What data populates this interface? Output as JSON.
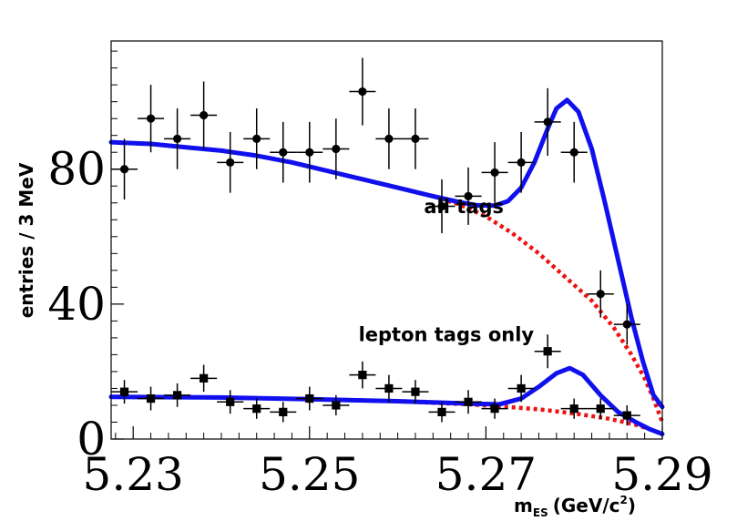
{
  "chart_data": {
    "type": "scatter",
    "title": "",
    "xlabel": {
      "main": "m",
      "sub": "ES",
      "unit": "(GeV/c",
      "sup": "2",
      "close": ")"
    },
    "ylabel": "entries / 3 MeV",
    "xlim": [
      5.2275,
      5.29
    ],
    "ylim": [
      0,
      118
    ],
    "x_ticks": [
      5.23,
      5.25,
      5.27,
      5.29
    ],
    "x_tick_labels": [
      "5.23",
      "5.25",
      "5.27",
      "5.29"
    ],
    "y_ticks": [
      0,
      40,
      80
    ],
    "y_tick_labels": [
      "0",
      "40",
      "80"
    ],
    "x_bin_halfwidth": 0.0015,
    "annotations": [
      {
        "text": "all tags",
        "x": 5.2675,
        "y": 67
      },
      {
        "text": "lepton tags only",
        "x": 5.2655,
        "y": 29
      }
    ],
    "series": [
      {
        "name": "all tags",
        "marker": "circle",
        "color": "#000000",
        "points": [
          {
            "x": 5.229,
            "y": 80,
            "err": 9
          },
          {
            "x": 5.232,
            "y": 95,
            "err": 10
          },
          {
            "x": 5.235,
            "y": 89,
            "err": 9
          },
          {
            "x": 5.238,
            "y": 96,
            "err": 10
          },
          {
            "x": 5.241,
            "y": 82,
            "err": 9
          },
          {
            "x": 5.244,
            "y": 89,
            "err": 9
          },
          {
            "x": 5.247,
            "y": 85,
            "err": 9
          },
          {
            "x": 5.25,
            "y": 85,
            "err": 9
          },
          {
            "x": 5.253,
            "y": 86,
            "err": 9
          },
          {
            "x": 5.256,
            "y": 103,
            "err": 10
          },
          {
            "x": 5.259,
            "y": 89,
            "err": 9
          },
          {
            "x": 5.262,
            "y": 89,
            "err": 9
          },
          {
            "x": 5.265,
            "y": 69,
            "err": 8
          },
          {
            "x": 5.268,
            "y": 72,
            "err": 8.5
          },
          {
            "x": 5.271,
            "y": 79,
            "err": 9
          },
          {
            "x": 5.274,
            "y": 82,
            "err": 9
          },
          {
            "x": 5.277,
            "y": 94,
            "err": 10
          },
          {
            "x": 5.28,
            "y": 85,
            "err": 9
          },
          {
            "x": 5.283,
            "y": 43,
            "err": 7
          },
          {
            "x": 5.286,
            "y": 34,
            "err": 6
          }
        ]
      },
      {
        "name": "lepton tags only",
        "marker": "square",
        "color": "#000000",
        "points": [
          {
            "x": 5.229,
            "y": 14,
            "err": 3.5
          },
          {
            "x": 5.232,
            "y": 12,
            "err": 3.5
          },
          {
            "x": 5.235,
            "y": 13,
            "err": 3.5
          },
          {
            "x": 5.238,
            "y": 18,
            "err": 4
          },
          {
            "x": 5.241,
            "y": 11,
            "err": 3.5
          },
          {
            "x": 5.244,
            "y": 9,
            "err": 3
          },
          {
            "x": 5.247,
            "y": 8,
            "err": 3
          },
          {
            "x": 5.25,
            "y": 12,
            "err": 3.5
          },
          {
            "x": 5.253,
            "y": 10,
            "err": 3
          },
          {
            "x": 5.256,
            "y": 19,
            "err": 4
          },
          {
            "x": 5.259,
            "y": 15,
            "err": 4
          },
          {
            "x": 5.262,
            "y": 14,
            "err": 3.5
          },
          {
            "x": 5.265,
            "y": 8,
            "err": 3
          },
          {
            "x": 5.268,
            "y": 11,
            "err": 3.5
          },
          {
            "x": 5.271,
            "y": 9,
            "err": 3
          },
          {
            "x": 5.274,
            "y": 15,
            "err": 4
          },
          {
            "x": 5.277,
            "y": 26,
            "err": 5
          },
          {
            "x": 5.28,
            "y": 9,
            "err": 3
          },
          {
            "x": 5.283,
            "y": 9,
            "err": 3
          },
          {
            "x": 5.286,
            "y": 7,
            "err": 3
          }
        ]
      }
    ],
    "curves": [
      {
        "name": "all tags total fit",
        "color": "#1010ee",
        "style": "solid",
        "points": [
          [
            5.2275,
            88
          ],
          [
            5.232,
            87.5
          ],
          [
            5.236,
            86.5
          ],
          [
            5.24,
            85.5
          ],
          [
            5.244,
            84
          ],
          [
            5.248,
            82
          ],
          [
            5.252,
            79.5
          ],
          [
            5.256,
            77
          ],
          [
            5.26,
            74.5
          ],
          [
            5.264,
            72
          ],
          [
            5.267,
            70.2
          ],
          [
            5.269,
            69.3
          ],
          [
            5.271,
            69.2
          ],
          [
            5.2725,
            70.5
          ],
          [
            5.274,
            74.5
          ],
          [
            5.2755,
            82
          ],
          [
            5.277,
            92
          ],
          [
            5.278,
            98
          ],
          [
            5.2792,
            100.5
          ],
          [
            5.2805,
            97
          ],
          [
            5.282,
            86
          ],
          [
            5.2835,
            70
          ],
          [
            5.285,
            53
          ],
          [
            5.2865,
            36
          ],
          [
            5.2878,
            23
          ],
          [
            5.289,
            13
          ],
          [
            5.29,
            9.5
          ]
        ]
      },
      {
        "name": "all tags background",
        "color": "#ee1111",
        "style": "dotted",
        "points": [
          [
            5.2275,
            88
          ],
          [
            5.232,
            87.5
          ],
          [
            5.236,
            86.5
          ],
          [
            5.24,
            85.5
          ],
          [
            5.244,
            84
          ],
          [
            5.248,
            82
          ],
          [
            5.252,
            79.5
          ],
          [
            5.256,
            77
          ],
          [
            5.26,
            74.5
          ],
          [
            5.264,
            72
          ],
          [
            5.267,
            69.5
          ],
          [
            5.27,
            66
          ],
          [
            5.273,
            61
          ],
          [
            5.276,
            55
          ],
          [
            5.279,
            48
          ],
          [
            5.282,
            41
          ],
          [
            5.2845,
            33
          ],
          [
            5.2865,
            25
          ],
          [
            5.288,
            18
          ],
          [
            5.289,
            12
          ],
          [
            5.29,
            5
          ]
        ]
      },
      {
        "name": "lepton tags total fit",
        "color": "#1010ee",
        "style": "solid",
        "points": [
          [
            5.2275,
            12.5
          ],
          [
            5.24,
            12.3
          ],
          [
            5.25,
            11.8
          ],
          [
            5.26,
            11.2
          ],
          [
            5.268,
            10.5
          ],
          [
            5.2715,
            10.3
          ],
          [
            5.274,
            12
          ],
          [
            5.276,
            15.5
          ],
          [
            5.278,
            19.5
          ],
          [
            5.2795,
            21
          ],
          [
            5.281,
            19
          ],
          [
            5.283,
            13
          ],
          [
            5.285,
            8
          ],
          [
            5.287,
            5
          ],
          [
            5.2885,
            3
          ],
          [
            5.29,
            1.5
          ]
        ]
      },
      {
        "name": "lepton tags background",
        "color": "#ee1111",
        "style": "dotted",
        "points": [
          [
            5.2275,
            12.5
          ],
          [
            5.24,
            12.3
          ],
          [
            5.25,
            11.8
          ],
          [
            5.26,
            11.2
          ],
          [
            5.268,
            10.3
          ],
          [
            5.272,
            9.6
          ],
          [
            5.276,
            8.8
          ],
          [
            5.28,
            7.6
          ],
          [
            5.284,
            6
          ],
          [
            5.287,
            4.2
          ],
          [
            5.289,
            2.6
          ],
          [
            5.29,
            1.3
          ]
        ]
      }
    ]
  }
}
